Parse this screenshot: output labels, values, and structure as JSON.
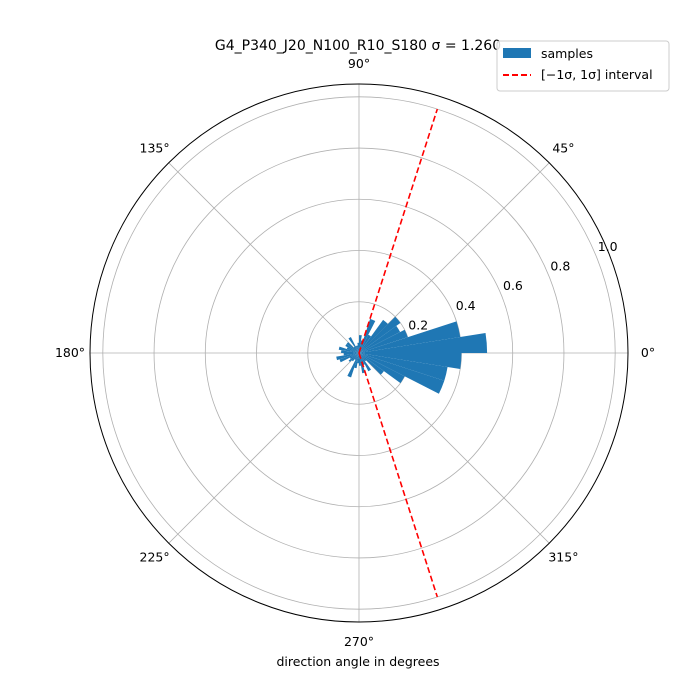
{
  "chart_data": {
    "type": "bar",
    "projection": "polar",
    "title": "G4_P340_J20_N100_R10_S180 σ = 1.260",
    "xlabel": "direction angle in degrees",
    "ylabel": "",
    "rlim": [
      0,
      1.05
    ],
    "r_ticks": [
      0.2,
      0.4,
      0.6,
      0.8,
      1.0
    ],
    "r_tick_labels": [
      "0.2",
      "0.4",
      "0.6",
      "0.8",
      "1.0"
    ],
    "theta_ticks": [
      0,
      45,
      90,
      135,
      180,
      225,
      270,
      315
    ],
    "theta_tick_labels": [
      "0°",
      "45°",
      "90°",
      "135°",
      "180°",
      "225°",
      "270°",
      "315°"
    ],
    "grid": true,
    "legend_position": "top-right",
    "series": [
      {
        "name": "samples",
        "kind": "bar",
        "color": "#1f77b4",
        "bin_width_deg": 9,
        "bin_centers_deg": [
          4.5,
          13.5,
          22.5,
          31.5,
          40.5,
          49.5,
          58.5,
          67.5,
          76.5,
          85.5,
          94.5,
          103.5,
          112.5,
          121.5,
          130.5,
          139.5,
          148.5,
          157.5,
          166.5,
          175.5,
          184.5,
          193.5,
          202.5,
          211.5,
          220.5,
          229.5,
          238.5,
          247.5,
          256.5,
          265.5,
          274.5,
          283.5,
          292.5,
          301.5,
          310.5,
          319.5,
          328.5,
          337.5,
          346.5,
          355.5
        ],
        "values": [
          0.5,
          0.4,
          0.2,
          0.18,
          0.2,
          0.16,
          0.08,
          0.14,
          0.05,
          0.07,
          0.04,
          0.03,
          0.03,
          0.07,
          0.03,
          0.06,
          0.06,
          0.05,
          0.08,
          0.07,
          0.06,
          0.09,
          0.08,
          0.04,
          0.05,
          0.04,
          0.03,
          0.1,
          0.06,
          0.04,
          0.05,
          0.08,
          0.05,
          0.08,
          0.04,
          0.12,
          0.2,
          0.35,
          0.35,
          0.4
        ]
      },
      {
        "name": "[−1σ, 1σ] interval",
        "kind": "line",
        "color": "#ff0000",
        "linestyle": "dashed",
        "angles_deg": [
          72.2,
          287.8
        ],
        "r_max": 1.0
      }
    ]
  }
}
